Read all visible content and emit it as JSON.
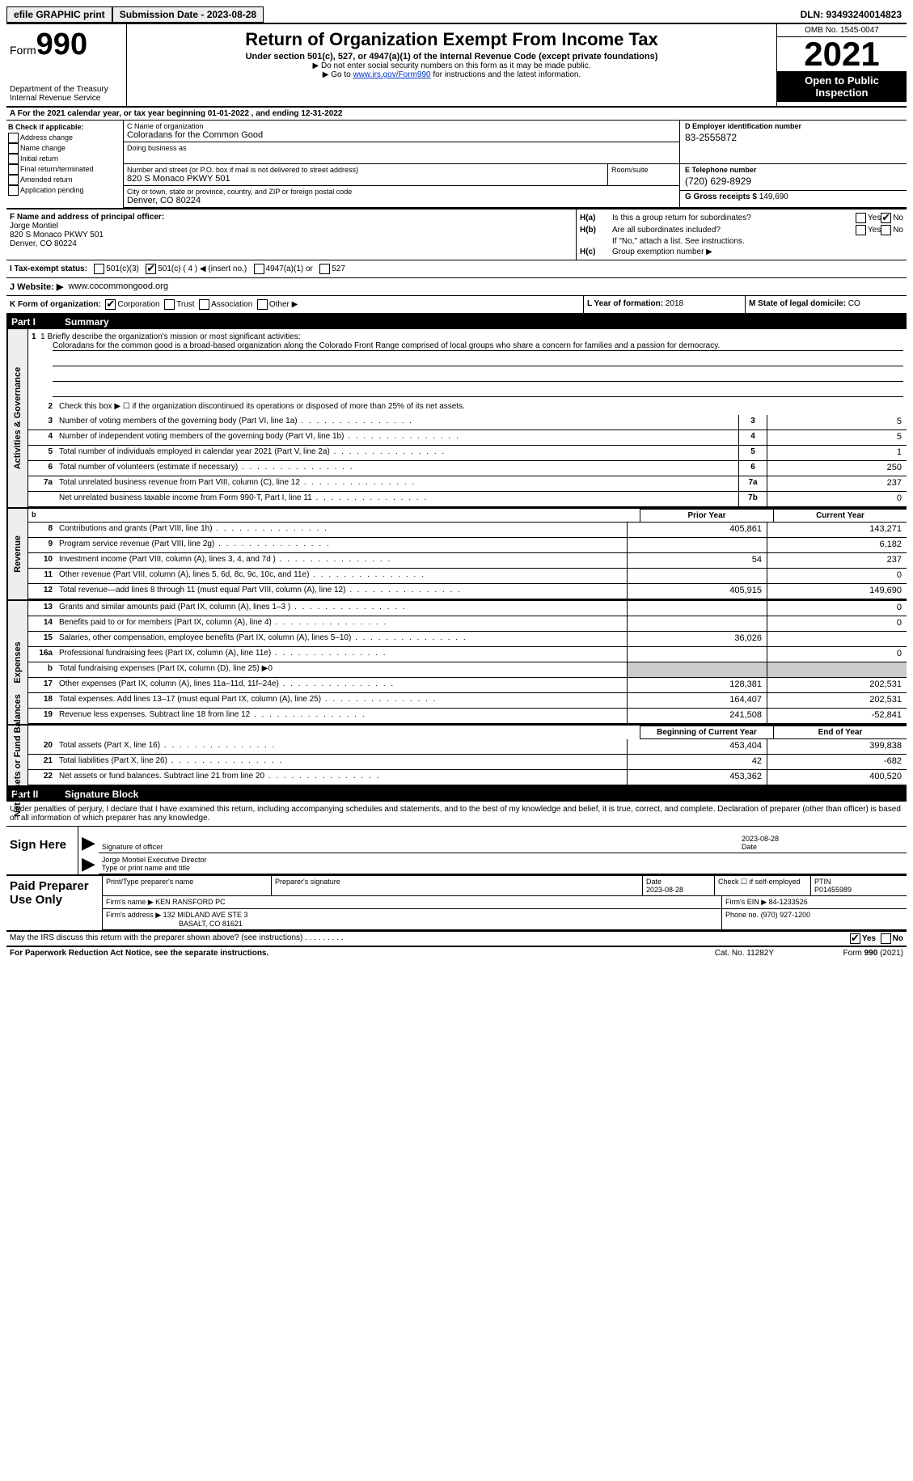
{
  "topbar": {
    "efile": "efile GRAPHIC print",
    "submission_label": "Submission Date - 2023-08-28",
    "dln": "DLN: 93493240014823"
  },
  "header": {
    "form_label": "Form",
    "form_number": "990",
    "dept": "Department of the Treasury\nInternal Revenue Service",
    "title": "Return of Organization Exempt From Income Tax",
    "subtitle": "Under section 501(c), 527, or 4947(a)(1) of the Internal Revenue Code (except private foundations)",
    "note1": "▶ Do not enter social security numbers on this form as it may be made public.",
    "note2_pre": "▶ Go to ",
    "note2_link": "www.irs.gov/Form990",
    "note2_post": " for instructions and the latest information.",
    "omb": "OMB No. 1545-0047",
    "year": "2021",
    "inspection": "Open to Public Inspection"
  },
  "line_a": "A For the 2021 calendar year, or tax year beginning 01-01-2022   , and ending 12-31-2022",
  "box_b": {
    "header": "B Check if applicable:",
    "items": [
      "Address change",
      "Name change",
      "Initial return",
      "Final return/terminated",
      "Amended return",
      "Application pending"
    ]
  },
  "box_c": {
    "name_label": "C Name of organization",
    "name": "Coloradans for the Common Good",
    "dba_label": "Doing business as",
    "street_label": "Number and street (or P.O. box if mail is not delivered to street address)",
    "street": "820 S Monaco PKWY 501",
    "suite_label": "Room/suite",
    "city_label": "City or town, state or province, country, and ZIP or foreign postal code",
    "city": "Denver, CO  80224"
  },
  "box_d": {
    "label": "D Employer identification number",
    "value": "83-2555872"
  },
  "box_e": {
    "label": "E Telephone number",
    "value": "(720) 629-8929"
  },
  "box_g": {
    "label": "G Gross receipts $",
    "value": "149,690"
  },
  "box_f": {
    "label": "F  Name and address of principal officer:",
    "name": "Jorge Montiel",
    "addr1": "820 S Monaco PKWY 501",
    "addr2": "Denver, CO  80224"
  },
  "box_h": {
    "ha": "Is this a group return for subordinates?",
    "hb": "Are all subordinates included?",
    "hb_note": "If \"No,\" attach a list. See instructions.",
    "hc": "Group exemption number ▶",
    "yes": "Yes",
    "no": "No"
  },
  "box_i": {
    "label": "I   Tax-exempt status:",
    "opts": [
      "501(c)(3)",
      "501(c) ( 4 ) ◀ (insert no.)",
      "4947(a)(1) or",
      "527"
    ]
  },
  "box_j": {
    "label": "J   Website: ▶",
    "value": "www.cocommongood.org"
  },
  "box_k": {
    "label": "K Form of organization:",
    "opts": [
      "Corporation",
      "Trust",
      "Association",
      "Other ▶"
    ]
  },
  "box_l": {
    "label": "L Year of formation:",
    "value": "2018"
  },
  "box_m": {
    "label": "M State of legal domicile:",
    "value": "CO"
  },
  "part1": {
    "num": "Part I",
    "title": "Summary"
  },
  "mission": {
    "label": "1   Briefly describe the organization's mission or most significant activities:",
    "text": "Coloradans for the common good is a broad-based organization along the Colorado Front Range comprised of local groups who share a concern for families and a passion for democracy."
  },
  "line2": "Check this box ▶ ☐ if the organization discontinued its operations or disposed of more than 25% of its net assets.",
  "vtabs": {
    "ag": "Activities & Governance",
    "rev": "Revenue",
    "exp": "Expenses",
    "na": "Net Assets or Fund Balances"
  },
  "col_headers": {
    "prior": "Prior Year",
    "current": "Current Year",
    "beg": "Beginning of Current Year",
    "end": "End of Year"
  },
  "rows_ag": [
    {
      "n": "3",
      "l": "Number of voting members of the governing body (Part VI, line 1a)",
      "b": "3",
      "v": "5"
    },
    {
      "n": "4",
      "l": "Number of independent voting members of the governing body (Part VI, line 1b)",
      "b": "4",
      "v": "5"
    },
    {
      "n": "5",
      "l": "Total number of individuals employed in calendar year 2021 (Part V, line 2a)",
      "b": "5",
      "v": "1"
    },
    {
      "n": "6",
      "l": "Total number of volunteers (estimate if necessary)",
      "b": "6",
      "v": "250"
    },
    {
      "n": "7a",
      "l": "Total unrelated business revenue from Part VIII, column (C), line 12",
      "b": "7a",
      "v": "237"
    },
    {
      "n": "",
      "l": "Net unrelated business taxable income from Form 990-T, Part I, line 11",
      "b": "7b",
      "v": "0"
    }
  ],
  "rows_rev": [
    {
      "n": "8",
      "l": "Contributions and grants (Part VIII, line 1h)",
      "p": "405,861",
      "c": "143,271"
    },
    {
      "n": "9",
      "l": "Program service revenue (Part VIII, line 2g)",
      "p": "",
      "c": "6,182"
    },
    {
      "n": "10",
      "l": "Investment income (Part VIII, column (A), lines 3, 4, and 7d )",
      "p": "54",
      "c": "237"
    },
    {
      "n": "11",
      "l": "Other revenue (Part VIII, column (A), lines 5, 6d, 8c, 9c, 10c, and 11e)",
      "p": "",
      "c": "0"
    },
    {
      "n": "12",
      "l": "Total revenue—add lines 8 through 11 (must equal Part VIII, column (A), line 12)",
      "p": "405,915",
      "c": "149,690"
    }
  ],
  "rows_exp": [
    {
      "n": "13",
      "l": "Grants and similar amounts paid (Part IX, column (A), lines 1–3 )",
      "p": "",
      "c": "0"
    },
    {
      "n": "14",
      "l": "Benefits paid to or for members (Part IX, column (A), line 4)",
      "p": "",
      "c": "0"
    },
    {
      "n": "15",
      "l": "Salaries, other compensation, employee benefits (Part IX, column (A), lines 5–10)",
      "p": "36,026",
      "c": ""
    },
    {
      "n": "16a",
      "l": "Professional fundraising fees (Part IX, column (A), line 11e)",
      "p": "",
      "c": "0"
    },
    {
      "n": "b",
      "l": "Total fundraising expenses (Part IX, column (D), line 25) ▶0",
      "grey": true
    },
    {
      "n": "17",
      "l": "Other expenses (Part IX, column (A), lines 11a–11d, 11f–24e)",
      "p": "128,381",
      "c": "202,531"
    },
    {
      "n": "18",
      "l": "Total expenses. Add lines 13–17 (must equal Part IX, column (A), line 25)",
      "p": "164,407",
      "c": "202,531"
    },
    {
      "n": "19",
      "l": "Revenue less expenses. Subtract line 18 from line 12",
      "p": "241,508",
      "c": "-52,841"
    }
  ],
  "rows_na": [
    {
      "n": "20",
      "l": "Total assets (Part X, line 16)",
      "p": "453,404",
      "c": "399,838"
    },
    {
      "n": "21",
      "l": "Total liabilities (Part X, line 26)",
      "p": "42",
      "c": "-682"
    },
    {
      "n": "22",
      "l": "Net assets or fund balances. Subtract line 21 from line 20",
      "p": "453,362",
      "c": "400,520"
    }
  ],
  "part2": {
    "num": "Part II",
    "title": "Signature Block"
  },
  "penalties": "Under penalties of perjury, I declare that I have examined this return, including accompanying schedules and statements, and to the best of my knowledge and belief, it is true, correct, and complete. Declaration of preparer (other than officer) is based on all information of which preparer has any knowledge.",
  "sign": {
    "left": "Sign Here",
    "sig_label": "Signature of officer",
    "date": "2023-08-28",
    "date_label": "Date",
    "name": "Jorge Montiel  Executive Director",
    "name_label": "Type or print name and title"
  },
  "prep": {
    "left": "Paid Preparer Use Only",
    "r1": {
      "a": "Print/Type preparer's name",
      "b": "Preparer's signature",
      "c": "Date",
      "cv": "2023-08-28",
      "d": "Check ☐ if self-employed",
      "e": "PTIN",
      "ev": "P01455989"
    },
    "r2": {
      "a": "Firm's name    ▶",
      "av": "KEN RANSFORD PC",
      "b": "Firm's EIN ▶",
      "bv": "84-1233526"
    },
    "r3": {
      "a": "Firm's address ▶",
      "av": "132 MIDLAND AVE STE 3",
      "av2": "BASALT, CO  81621",
      "b": "Phone no.",
      "bv": "(970) 927-1200"
    }
  },
  "discuss": "May the IRS discuss this return with the preparer shown above? (see instructions)",
  "footer": {
    "left": "For Paperwork Reduction Act Notice, see the separate instructions.",
    "mid": "Cat. No. 11282Y",
    "right": "Form 990 (2021)"
  }
}
